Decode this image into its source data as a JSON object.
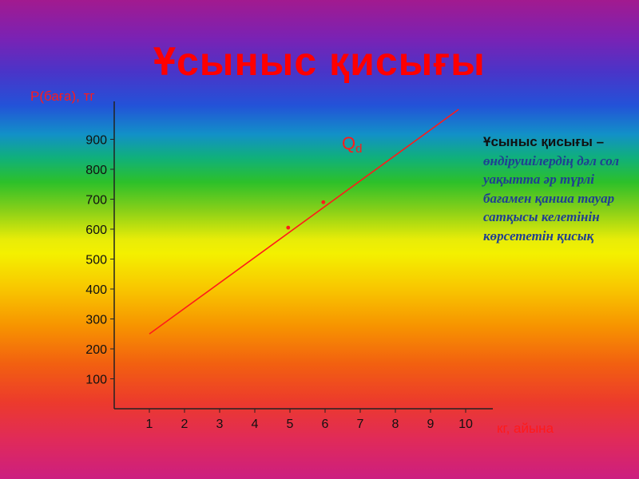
{
  "title": "Ұсыныс қисығы",
  "note": {
    "heading": "Ұсыныс қисығы",
    "dash": " –",
    "body": "өндірушілердің дәл сол уақытта әр түрлі бағамен қанша тауар сатқысы келетінін көрсететін қисық"
  },
  "colors": {
    "title": "#ff0000",
    "line": "#ff1a1a",
    "axis": "#222222",
    "note_text": "#1f3f92"
  },
  "chart_data": {
    "type": "line",
    "ylabel": "Р(баға), тг",
    "xlabel": "кг, айына",
    "series_label": "Q",
    "series_label_sub": "d",
    "x_ticks": [
      1,
      2,
      3,
      4,
      5,
      6,
      7,
      8,
      9,
      10
    ],
    "y_ticks": [
      100,
      200,
      300,
      400,
      500,
      600,
      700,
      800,
      900
    ],
    "xlim": [
      0,
      10.5
    ],
    "ylim": [
      0,
      1000
    ],
    "series": [
      {
        "x": [
          1,
          9.8
        ],
        "y": [
          250,
          1000
        ]
      }
    ],
    "points": [
      {
        "x": 4.95,
        "y": 605
      },
      {
        "x": 5.95,
        "y": 690
      }
    ],
    "grid": false
  }
}
